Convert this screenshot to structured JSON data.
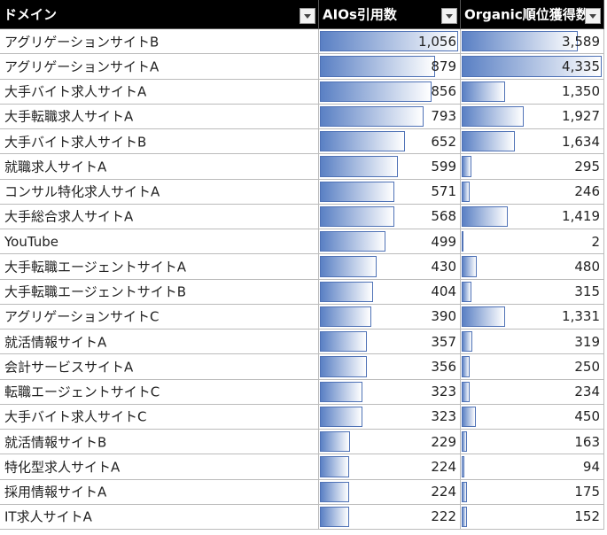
{
  "table": {
    "header": [
      "ドメイン",
      "AIOs引用数",
      "Organic順位獲得数"
    ],
    "rows": [
      [
        "アグリゲーションサイトB",
        {
          "value": 1056,
          "label": "1,056"
        },
        {
          "value": 3589,
          "label": "3,589"
        }
      ],
      [
        "アグリゲーションサイトA",
        879,
        {
          "value": 4335,
          "label": "4,335"
        }
      ],
      [
        "大手バイト求人サイトA",
        856,
        {
          "value": 1350,
          "label": "1,350"
        }
      ],
      [
        "大手転職求人サイトA",
        793,
        {
          "value": 1927,
          "label": "1,927"
        }
      ],
      [
        "大手バイト求人サイトB",
        652,
        {
          "value": 1634,
          "label": "1,634"
        }
      ],
      [
        "就職求人サイトA",
        599,
        295
      ],
      [
        "コンサル特化求人サイトA",
        571,
        246
      ],
      [
        "大手総合求人サイトA",
        568,
        {
          "value": 1419,
          "label": "1,419"
        }
      ],
      [
        "YouTube",
        499,
        2
      ],
      [
        "大手転職エージェントサイトA",
        430,
        480
      ],
      [
        "大手転職エージェントサイトB",
        404,
        315
      ],
      [
        "アグリゲーションサイトC",
        390,
        {
          "value": 1331,
          "label": "1,331"
        }
      ],
      [
        "就活情報サイトA",
        357,
        319
      ],
      [
        "会計サービスサイトA",
        356,
        250
      ],
      [
        "転職エージェントサイトC",
        323,
        234
      ],
      [
        "大手バイト求人サイトC",
        323,
        450
      ],
      [
        "就活情報サイトB",
        229,
        163
      ],
      [
        "特化型求人サイトA",
        224,
        94
      ],
      [
        "採用情報サイトA",
        224,
        175
      ],
      [
        "IT求人サイトA",
        222,
        152
      ]
    ]
  }
}
